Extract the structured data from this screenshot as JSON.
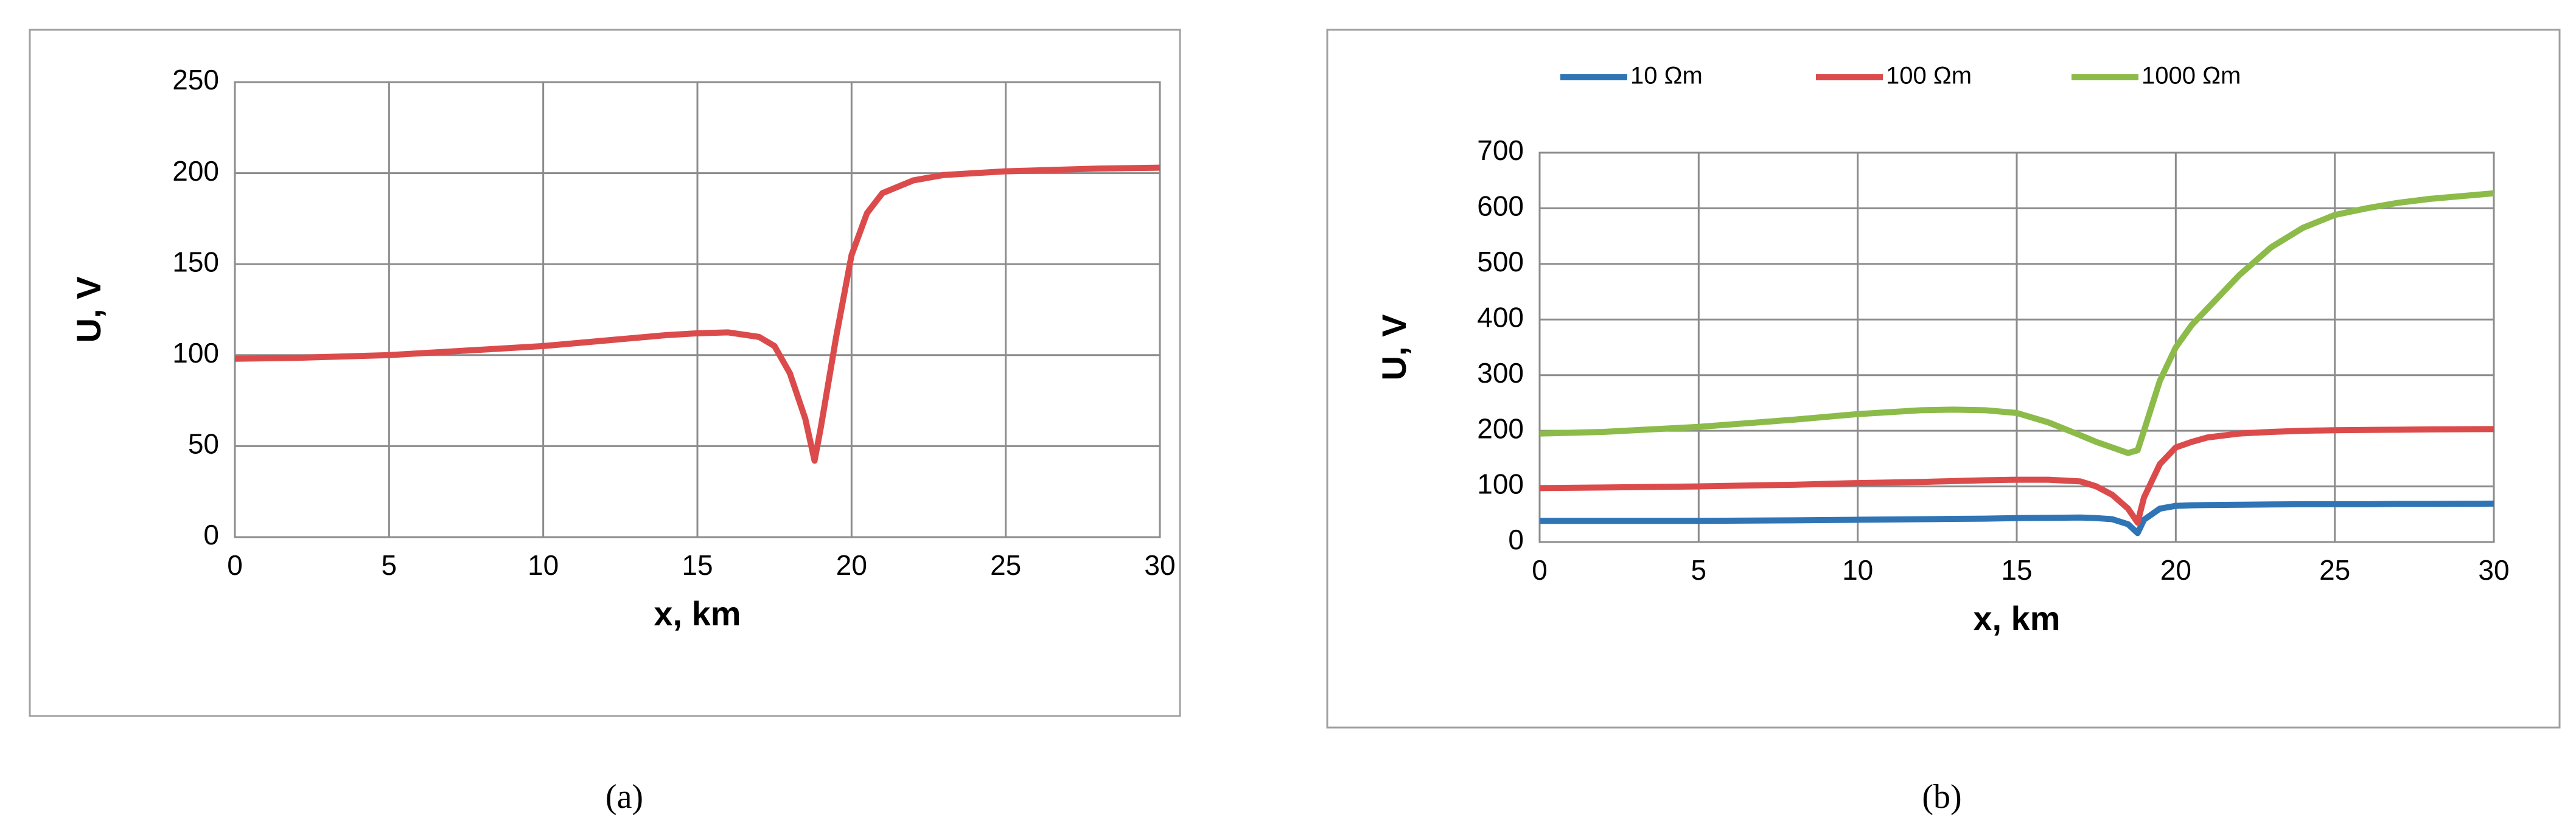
{
  "chart_data": [
    {
      "type": "line",
      "caption": "(a)",
      "xlabel": "x, km",
      "ylabel": "U, V",
      "x": [
        0,
        2,
        5,
        8,
        10,
        12,
        13,
        14,
        15,
        16,
        17,
        17.5,
        18,
        18.5,
        18.8,
        19,
        19.5,
        20,
        20.5,
        21,
        22,
        23,
        24,
        25,
        26,
        27,
        28,
        30
      ],
      "series": [
        {
          "color": "#dc4b4b",
          "values": [
            98,
            98.5,
            100,
            103,
            105,
            108,
            109.5,
            111,
            112,
            112.5,
            110,
            105,
            90,
            65,
            42,
            60,
            110,
            155,
            178,
            189,
            196,
            199,
            200,
            201,
            201.5,
            202,
            202.5,
            203
          ]
        }
      ],
      "xlim": [
        0,
        30
      ],
      "ylim": [
        0,
        250
      ],
      "xticks": [
        0,
        5,
        10,
        15,
        20,
        25,
        30
      ],
      "yticks": [
        0,
        50,
        100,
        150,
        200,
        250
      ],
      "grid": true
    },
    {
      "type": "line",
      "caption": "(b)",
      "xlabel": "x, km",
      "ylabel": "U, V",
      "legend": "top",
      "x": [
        0,
        2,
        5,
        8,
        10,
        12,
        13,
        14,
        15,
        16,
        17,
        17.5,
        18,
        18.5,
        18.8,
        19,
        19.5,
        20,
        20.5,
        21,
        22,
        23,
        24,
        25,
        26,
        27,
        28,
        30
      ],
      "series": [
        {
          "name": "10 Ωm",
          "color": "#2f75b5",
          "values": [
            38,
            38,
            38,
            39,
            40,
            41,
            41.5,
            42,
            43,
            43.5,
            44,
            43,
            41,
            32,
            16,
            40,
            60,
            65,
            66,
            66.5,
            67,
            67.5,
            68,
            68,
            68,
            68.5,
            68.5,
            69
          ]
        },
        {
          "name": "100 Ωm",
          "color": "#dc4b4b",
          "values": [
            97,
            98,
            100,
            103,
            106,
            108,
            109.5,
            111,
            112,
            112,
            109,
            100,
            85,
            60,
            35,
            80,
            140,
            170,
            180,
            188,
            195,
            198,
            200,
            201,
            201.5,
            202,
            202.5,
            203
          ]
        },
        {
          "name": "1000 Ωm",
          "color": "#8cbb4a",
          "values": [
            195,
            198,
            207,
            220,
            230,
            237,
            238,
            237,
            232,
            215,
            192,
            180,
            170,
            160,
            165,
            200,
            290,
            350,
            390,
            420,
            480,
            530,
            565,
            588,
            600,
            610,
            617,
            627
          ]
        }
      ],
      "xlim": [
        0,
        30
      ],
      "ylim": [
        0,
        700
      ],
      "xticks": [
        0,
        5,
        10,
        15,
        20,
        25,
        30
      ],
      "yticks": [
        0,
        100,
        200,
        300,
        400,
        500,
        600,
        700
      ],
      "grid": true
    }
  ]
}
